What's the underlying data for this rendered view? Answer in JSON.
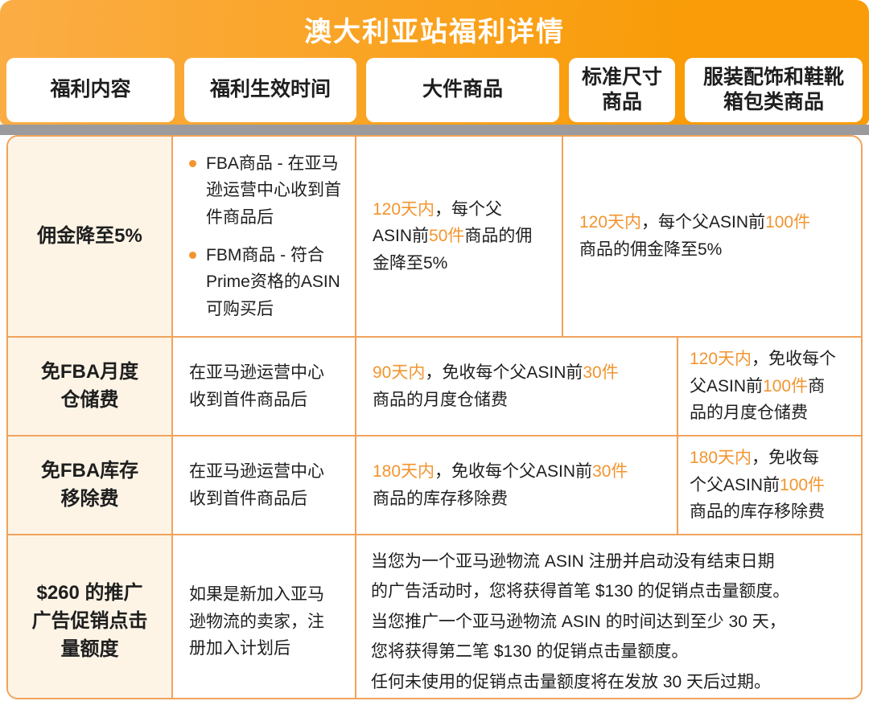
{
  "colors": {
    "banner-light": "#FBAD45",
    "banner-dark": "#F99C08",
    "shadow-gray": "#9B9B9D",
    "border-orange": "#F0A35C",
    "cream": "#FDF4E6",
    "accent": "#F2952F",
    "text": "#1E1E1E"
  },
  "banner": {
    "title": "澳大利亚站福利详情"
  },
  "table": {
    "columns": [
      "福利内容",
      "福利生效时间",
      "大件商品",
      "标准尺寸\n商品",
      "服装配饰和鞋靴\n箱包类商品"
    ],
    "rows": [
      {
        "benefit": "佣金降至5%",
        "effective_bullets": [
          "FBA商品 - 在亚马\n逊运营中心收到首\n件商品后",
          "FBM商品 - 符合\nPrime资格的ASIN\n可购买后"
        ],
        "large_item": [
          {
            "text": "120天内",
            "highlight": true
          },
          {
            "text": "，每个父\nASIN前"
          },
          {
            "text": "50件",
            "highlight": true
          },
          {
            "text": "商品的佣\n金降至5%"
          }
        ],
        "standard_and_apparel": [
          {
            "text": "120天内",
            "highlight": true
          },
          {
            "text": "，每个父ASIN前"
          },
          {
            "text": "100件",
            "highlight": true
          },
          {
            "text": "\n商品的佣金降至5%"
          }
        ]
      },
      {
        "benefit": "免FBA月度\n仓储费",
        "effective": "在亚马逊运营中心\n收到首件商品后",
        "large_and_standard": [
          {
            "text": "90天内",
            "highlight": true
          },
          {
            "text": "，免收每个父ASIN前"
          },
          {
            "text": "30件",
            "highlight": true
          },
          {
            "text": "\n商品的月度仓储费"
          }
        ],
        "apparel": [
          {
            "text": "120天内",
            "highlight": true
          },
          {
            "text": "，免收每个\n父ASIN前"
          },
          {
            "text": "100件",
            "highlight": true
          },
          {
            "text": "商\n品的月度仓储费"
          }
        ]
      },
      {
        "benefit": "免FBA库存\n移除费",
        "effective": "在亚马逊运营中心\n收到首件商品后",
        "large_and_standard": [
          {
            "text": "180天内",
            "highlight": true
          },
          {
            "text": "，免收每个父ASIN前"
          },
          {
            "text": "30件",
            "highlight": true
          },
          {
            "text": "\n商品的库存移除费"
          }
        ],
        "apparel": [
          {
            "text": "180天内",
            "highlight": true
          },
          {
            "text": "，免收每\n个父ASIN前"
          },
          {
            "text": "100件",
            "highlight": true
          },
          {
            "text": "\n商品的库存移除费"
          }
        ]
      },
      {
        "benefit": "$260 的推广\n广告促销点击\n量额度",
        "effective": "如果是新加入亚马\n逊物流的卖家，注\n册加入计划后",
        "all_products": "当您为一个亚马逊物流 ASIN 注册并启动没有结束日期\n的广告活动时，您将获得首笔 $130 的促销点击量额度。\n当您推广一个亚马逊物流 ASIN 的时间达到至少 30 天，\n您将获得第二笔 $130 的促销点击量额度。\n任何未使用的促销点击量额度将在发放 30 天后过期。"
      }
    ]
  }
}
